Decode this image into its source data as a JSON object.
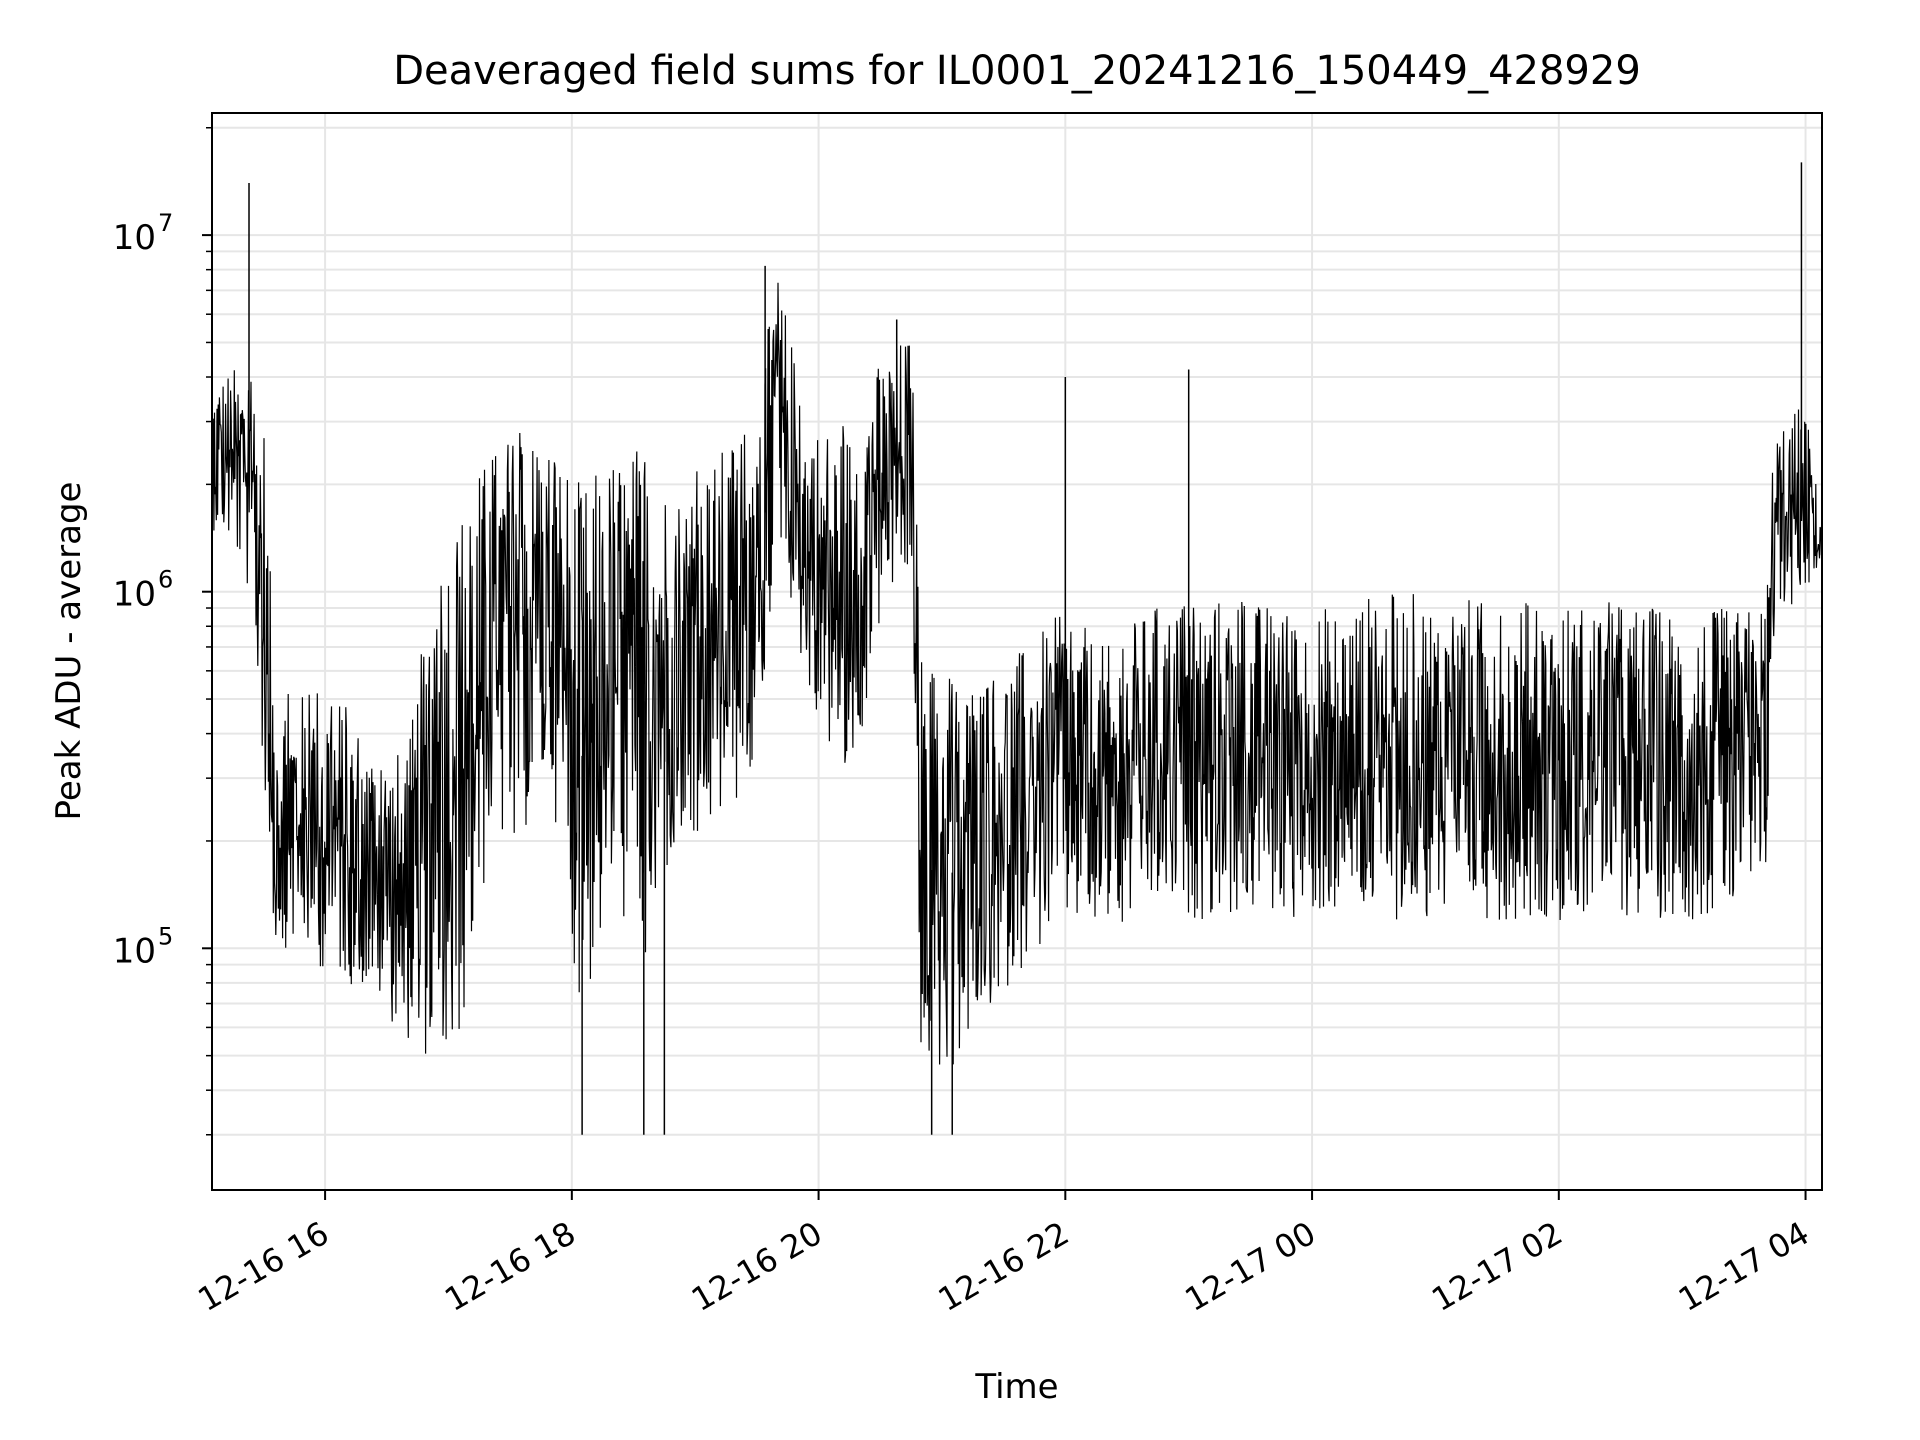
{
  "chart_data": {
    "type": "line",
    "title": "Deaveraged field sums for IL0001_20241216_150449_428929",
    "xlabel": "Time",
    "ylabel": "Peak ADU - average",
    "y_scale": "log",
    "xlim": [
      "2024-12-16 15:05",
      "2024-12-17 04:08"
    ],
    "ylim": [
      21000,
      22000000
    ],
    "grid": true,
    "line_color": "#000000",
    "x_ticks": [
      {
        "t": "2024-12-16 16:00",
        "label": "12-16 16"
      },
      {
        "t": "2024-12-16 18:00",
        "label": "12-16 18"
      },
      {
        "t": "2024-12-16 20:00",
        "label": "12-16 20"
      },
      {
        "t": "2024-12-16 22:00",
        "label": "12-16 22"
      },
      {
        "t": "2024-12-17 00:00",
        "label": "12-17 00"
      },
      {
        "t": "2024-12-17 02:00",
        "label": "12-17 02"
      },
      {
        "t": "2024-12-17 04:00",
        "label": "12-17 04"
      }
    ],
    "y_ticks": [
      {
        "value": 100000,
        "base": "10",
        "exp": "5"
      },
      {
        "value": 1000000,
        "base": "10",
        "exp": "6"
      },
      {
        "value": 10000000,
        "base": "10",
        "exp": "7"
      }
    ],
    "series": [
      {
        "x": [
          "2024-12-16 15:05",
          "2024-12-16 15:15",
          "2024-12-16 15:25",
          "2024-12-16 15:30",
          "2024-12-16 15:35",
          "2024-12-16 15:45",
          "2024-12-16 16:00",
          "2024-12-16 16:20",
          "2024-12-16 16:40",
          "2024-12-16 16:55",
          "2024-12-16 17:05",
          "2024-12-16 17:20",
          "2024-12-16 17:35",
          "2024-12-16 17:50",
          "2024-12-16 18:05",
          "2024-12-16 18:20",
          "2024-12-16 18:35",
          "2024-12-16 18:50",
          "2024-12-16 19:10",
          "2024-12-16 19:30",
          "2024-12-16 19:40",
          "2024-12-16 19:55",
          "2024-12-16 20:15",
          "2024-12-16 20:30",
          "2024-12-16 20:45",
          "2024-12-16 20:50",
          "2024-12-16 21:00",
          "2024-12-16 21:20",
          "2024-12-16 21:40",
          "2024-12-16 22:00",
          "2024-12-16 22:20",
          "2024-12-16 22:40",
          "2024-12-16 23:00",
          "2024-12-16 23:30",
          "2024-12-17 00:00",
          "2024-12-17 00:30",
          "2024-12-17 01:00",
          "2024-12-17 01:30",
          "2024-12-17 02:00",
          "2024-12-17 02:30",
          "2024-12-17 03:00",
          "2024-12-17 03:30",
          "2024-12-17 03:40",
          "2024-12-17 03:45",
          "2024-12-17 04:00",
          "2024-12-17 04:08"
        ],
        "y_min": [
          1500000,
          1300000,
          900000,
          300000,
          100000,
          100000,
          85000,
          75000,
          55000,
          45000,
          50000,
          180000,
          200000,
          280000,
          60000,
          130000,
          90000,
          180000,
          200000,
          300000,
          1500000,
          500000,
          250000,
          800000,
          1100000,
          45000,
          40000,
          60000,
          90000,
          110000,
          110000,
          120000,
          120000,
          120000,
          120000,
          120000,
          120000,
          120000,
          120000,
          120000,
          120000,
          120000,
          120000,
          800000,
          1000000,
          1200000
        ],
        "y_max": [
          4000000,
          4300000,
          4000000,
          3500000,
          650000,
          500000,
          600000,
          400000,
          350000,
          1500000,
          1800000,
          2500000,
          3000000,
          2800000,
          2000000,
          2500000,
          2700000,
          2000000,
          2400000,
          3500000,
          8000000,
          3000000,
          3000000,
          4500000,
          5500000,
          700000,
          600000,
          600000,
          700000,
          900000,
          700000,
          900000,
          1000000,
          950000,
          900000,
          1000000,
          1000000,
          950000,
          950000,
          950000,
          900000,
          900000,
          950000,
          3000000,
          3400000,
          1500000
        ],
        "spikes": [
          {
            "t": "2024-12-16 15:23",
            "v": 14000000
          },
          {
            "t": "2024-12-16 19:34",
            "v": 8200000
          },
          {
            "t": "2024-12-16 20:38",
            "v": 5800000
          },
          {
            "t": "2024-12-16 22:00",
            "v": 4000000
          },
          {
            "t": "2024-12-16 23:00",
            "v": 4200000
          },
          {
            "t": "2024-12-17 03:58",
            "v": 16000000
          }
        ],
        "dips": [
          {
            "t": "2024-12-16 18:05",
            "v": 30000
          },
          {
            "t": "2024-12-16 18:35",
            "v": 30000
          },
          {
            "t": "2024-12-16 18:45",
            "v": 30000
          },
          {
            "t": "2024-12-16 20:55",
            "v": 30000
          },
          {
            "t": "2024-12-16 21:05",
            "v": 30000
          }
        ]
      }
    ]
  }
}
